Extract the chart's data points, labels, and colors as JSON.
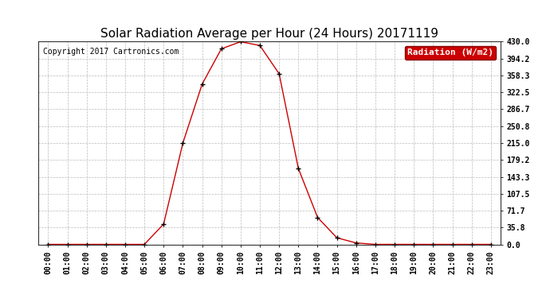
{
  "title": "Solar Radiation Average per Hour (24 Hours) 20171119",
  "copyright": "Copyright 2017 Cartronics.com",
  "legend_label": "Radiation (W/m2)",
  "hours": [
    "00:00",
    "01:00",
    "02:00",
    "03:00",
    "04:00",
    "05:00",
    "06:00",
    "07:00",
    "08:00",
    "09:00",
    "10:00",
    "11:00",
    "12:00",
    "13:00",
    "14:00",
    "15:00",
    "16:00",
    "17:00",
    "18:00",
    "19:00",
    "20:00",
    "21:00",
    "22:00",
    "23:00"
  ],
  "values": [
    0.0,
    0.0,
    0.0,
    0.0,
    0.0,
    0.0,
    43.0,
    215.0,
    340.0,
    415.0,
    430.0,
    422.0,
    362.0,
    161.0,
    57.0,
    14.0,
    3.0,
    0.0,
    0.0,
    0.0,
    0.0,
    0.0,
    0.0,
    0.0
  ],
  "line_color": "#cc0000",
  "marker_color": "#000000",
  "background_color": "#ffffff",
  "grid_color": "#bbbbbb",
  "ylim_min": 0,
  "ylim_max": 430,
  "yticks": [
    0.0,
    35.8,
    71.7,
    107.5,
    143.3,
    179.2,
    215.0,
    250.8,
    286.7,
    322.5,
    358.3,
    394.2,
    430.0
  ],
  "title_fontsize": 11,
  "copyright_fontsize": 7,
  "legend_fontsize": 8,
  "tick_fontsize": 7,
  "legend_bg": "#cc0000",
  "legend_text_color": "#ffffff"
}
